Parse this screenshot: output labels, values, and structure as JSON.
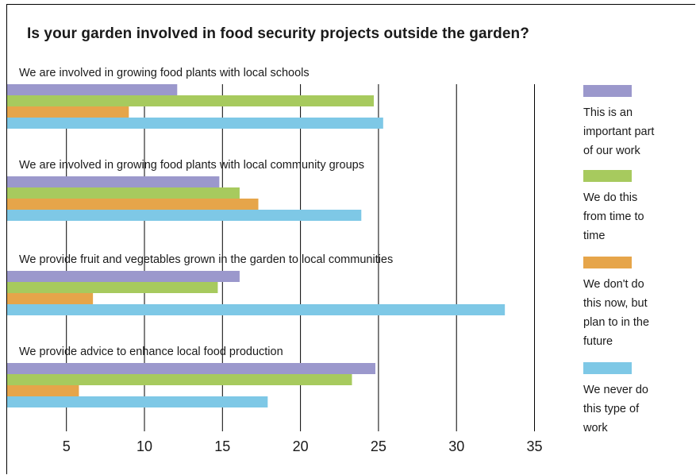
{
  "chart_data": {
    "type": "bar",
    "orientation": "horizontal",
    "title": "Is your garden involved in food security projects outside the garden?",
    "categories": [
      "We are involved in growing food plants with local schools",
      "We are involved in growing food plants with local community groups",
      "We provide fruit and vegetables grown in the garden to local communities",
      "We provide advice to enhance local food production"
    ],
    "series": [
      {
        "name": "This is an important part of our work",
        "legend_lines": [
          "This is an",
          "important part",
          "of our work"
        ],
        "color": "#9b98cc",
        "values": [
          12.1,
          14.8,
          16.1,
          24.8
        ]
      },
      {
        "name": "We do this from time to time",
        "legend_lines": [
          "We do this",
          "from time to",
          "time"
        ],
        "color": "#a7ca5e",
        "values": [
          24.7,
          16.1,
          14.7,
          23.3
        ]
      },
      {
        "name": "We don't do this now, but plan to in the future",
        "legend_lines": [
          "We don't do",
          "this now, but",
          "plan to in the",
          "future"
        ],
        "color": "#e6a54a",
        "values": [
          9.0,
          17.3,
          6.7,
          5.8
        ]
      },
      {
        "name": "We never do this type of work",
        "legend_lines": [
          "We never do",
          "this type of",
          "work"
        ],
        "color": "#7ec8e6",
        "values": [
          25.3,
          23.9,
          33.1,
          17.9
        ]
      }
    ],
    "x_ticks": [
      5,
      10,
      15,
      20,
      25,
      30,
      35
    ],
    "xlim": [
      1.2,
      37
    ],
    "grid": "vertical",
    "legend_position": "right"
  }
}
